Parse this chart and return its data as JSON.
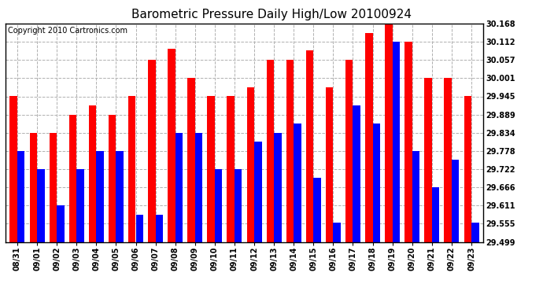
{
  "title": "Barometric Pressure Daily High/Low 20100924",
  "copyright": "Copyright 2010 Cartronics.com",
  "categories": [
    "08/31",
    "09/01",
    "09/02",
    "09/03",
    "09/04",
    "09/05",
    "09/06",
    "09/07",
    "09/08",
    "09/09",
    "09/10",
    "09/11",
    "09/12",
    "09/13",
    "09/14",
    "09/15",
    "09/16",
    "09/17",
    "09/18",
    "09/19",
    "09/20",
    "09/21",
    "09/22",
    "09/23"
  ],
  "highs": [
    29.945,
    29.834,
    29.834,
    29.889,
    29.917,
    29.889,
    29.945,
    30.057,
    30.09,
    30.001,
    29.945,
    29.945,
    29.973,
    30.057,
    30.057,
    30.085,
    29.973,
    30.057,
    30.14,
    30.168,
    30.112,
    30.001,
    30.001,
    29.945
  ],
  "lows": [
    29.778,
    29.722,
    29.611,
    29.722,
    29.778,
    29.778,
    29.583,
    29.583,
    29.834,
    29.834,
    29.722,
    29.722,
    29.806,
    29.834,
    29.862,
    29.695,
    29.557,
    29.917,
    29.862,
    30.112,
    29.778,
    29.667,
    29.75,
    29.557
  ],
  "high_color": "#ff0000",
  "low_color": "#0000ff",
  "bg_color": "#ffffff",
  "plot_bg_color": "#ffffff",
  "grid_color": "#b0b0b0",
  "ylim": [
    29.499,
    30.168
  ],
  "yticks": [
    29.499,
    29.555,
    29.611,
    29.666,
    29.722,
    29.778,
    29.834,
    29.889,
    29.945,
    30.001,
    30.057,
    30.112,
    30.168
  ],
  "title_fontsize": 11,
  "copyright_fontsize": 7,
  "tick_fontsize": 7
}
